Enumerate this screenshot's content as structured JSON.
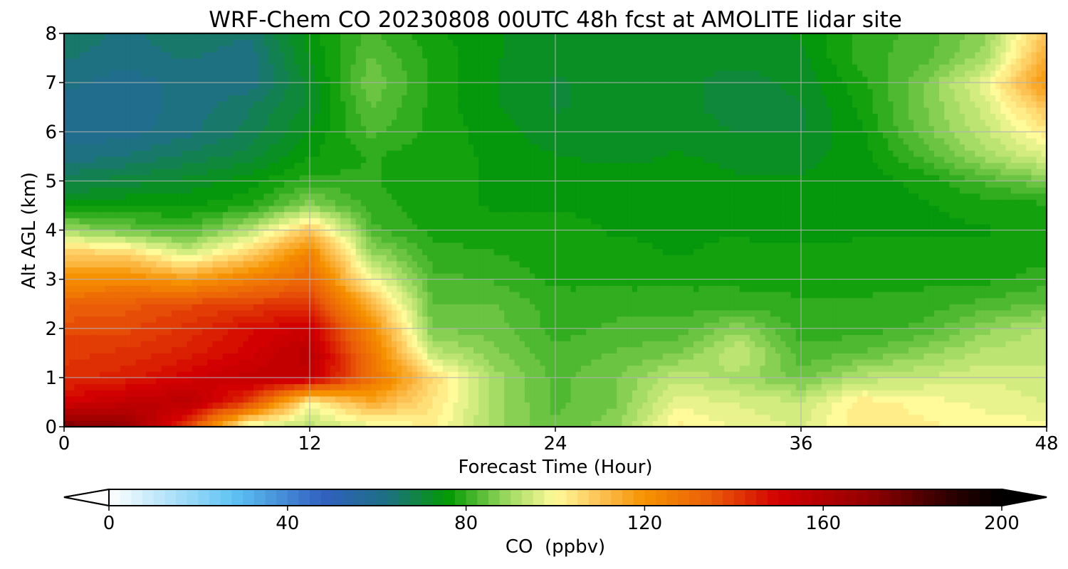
{
  "chart_data": {
    "type": "heatmap",
    "title": "WRF-Chem CO  20230808 00UTC 48h fcst at AMOLITE lidar site",
    "xlabel": "Forecast Time (Hour)",
    "ylabel": "Alt AGL (km)",
    "xlim": [
      0,
      48
    ],
    "ylim": [
      0,
      8
    ],
    "xticks": [
      0,
      12,
      24,
      36,
      48
    ],
    "yticks": [
      0,
      1,
      2,
      3,
      4,
      5,
      6,
      7,
      8
    ],
    "grid": true,
    "x": [
      0,
      3,
      6,
      9,
      12,
      15,
      18,
      21,
      24,
      27,
      30,
      33,
      36,
      39,
      42,
      45,
      48
    ],
    "y": [
      0,
      0.5,
      1,
      1.5,
      2,
      2.5,
      3,
      3.5,
      4,
      4.5,
      5,
      5.5,
      6,
      6.5,
      7,
      7.5,
      8
    ],
    "z": [
      [
        175,
        170,
        140,
        95,
        92,
        97,
        102,
        90,
        84,
        88,
        102,
        98,
        96,
        103,
        102,
        100,
        100
      ],
      [
        150,
        155,
        158,
        140,
        100,
        115,
        104,
        90,
        83,
        86,
        98,
        96,
        94,
        103,
        100,
        98,
        96
      ],
      [
        143,
        145,
        150,
        155,
        155,
        130,
        106,
        90,
        83,
        86,
        93,
        90,
        85,
        92,
        94,
        96,
        95
      ],
      [
        140,
        142,
        145,
        150,
        158,
        128,
        93,
        87,
        82,
        84,
        86,
        94,
        82,
        84,
        88,
        92,
        93
      ],
      [
        138,
        138,
        142,
        148,
        152,
        122,
        86,
        85,
        80,
        82,
        82,
        88,
        80,
        80,
        82,
        88,
        92
      ],
      [
        133,
        135,
        138,
        140,
        142,
        112,
        84,
        84,
        80,
        80,
        80,
        80,
        79,
        79,
        80,
        82,
        84
      ],
      [
        120,
        122,
        118,
        125,
        132,
        100,
        82,
        81,
        78,
        78,
        78,
        78,
        78,
        78,
        78,
        78,
        80
      ],
      [
        110,
        108,
        96,
        108,
        125,
        90,
        80,
        79,
        77,
        77,
        76,
        77,
        77,
        77,
        77,
        77,
        78
      ],
      [
        90,
        85,
        82,
        92,
        110,
        82,
        78,
        77,
        77,
        76,
        76,
        76,
        75,
        76,
        76,
        76,
        77
      ],
      [
        75,
        76,
        76,
        78,
        88,
        80,
        77,
        76,
        76,
        76,
        75,
        75,
        75,
        75,
        76,
        77,
        78
      ],
      [
        68,
        70,
        72,
        75,
        80,
        79,
        77,
        76,
        75,
        75,
        75,
        74,
        74,
        75,
        77,
        82,
        86
      ],
      [
        62,
        64,
        67,
        70,
        76,
        79,
        77,
        76,
        74,
        73,
        74,
        73,
        73,
        75,
        82,
        90,
        96
      ],
      [
        60,
        60,
        63,
        67,
        74,
        82,
        78,
        75,
        72,
        73,
        73,
        71,
        71,
        76,
        85,
        93,
        103
      ],
      [
        60,
        60,
        62,
        66,
        72,
        84,
        78,
        74,
        71,
        72,
        72,
        70,
        71,
        77,
        86,
        95,
        110
      ],
      [
        62,
        60,
        62,
        62,
        72,
        86,
        78,
        74,
        71,
        72,
        72,
        70,
        72,
        78,
        86,
        98,
        120
      ],
      [
        64,
        62,
        64,
        62,
        74,
        84,
        78,
        74,
        72,
        72,
        72,
        72,
        73,
        80,
        83,
        90,
        115
      ],
      [
        66,
        63,
        66,
        64,
        75,
        82,
        77,
        74,
        72,
        72,
        72,
        73,
        74,
        80,
        82,
        88,
        110
      ]
    ],
    "colorbar": {
      "label": "CO  (ppbv)",
      "min": 0,
      "max": 200,
      "ticks": [
        0,
        40,
        80,
        120,
        160,
        200
      ],
      "extend": "both",
      "colormap": [
        {
          "v": 0,
          "c": "#ffffff"
        },
        {
          "v": 28,
          "c": "#5fc3f3"
        },
        {
          "v": 48,
          "c": "#3060c0"
        },
        {
          "v": 62,
          "c": "#1e6f85"
        },
        {
          "v": 76,
          "c": "#039a03"
        },
        {
          "v": 90,
          "c": "#a5dc65"
        },
        {
          "v": 100,
          "c": "#fffb9a"
        },
        {
          "v": 110,
          "c": "#fdc254"
        },
        {
          "v": 120,
          "c": "#f69200"
        },
        {
          "v": 135,
          "c": "#ea5c08"
        },
        {
          "v": 150,
          "c": "#d20000"
        },
        {
          "v": 170,
          "c": "#930000"
        },
        {
          "v": 188,
          "c": "#300000"
        },
        {
          "v": 200,
          "c": "#000000"
        }
      ]
    }
  }
}
